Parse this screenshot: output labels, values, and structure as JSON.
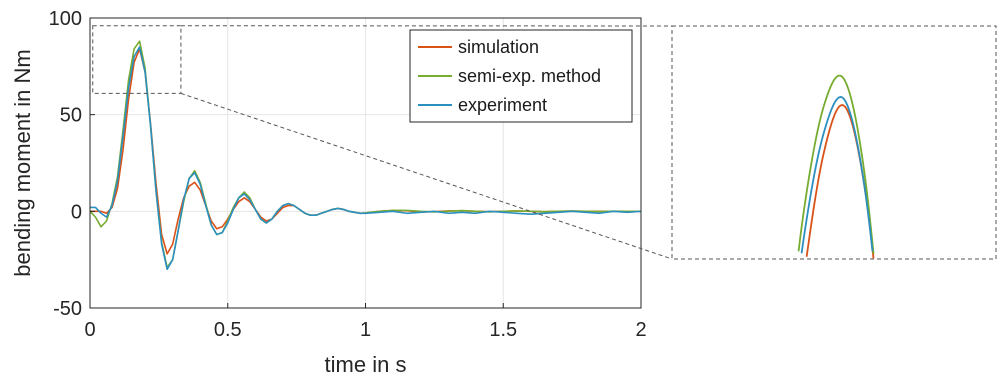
{
  "chart_data": {
    "type": "line",
    "xlabel": "time in s",
    "ylabel": "bending moment in Nm",
    "xlim": [
      0,
      2
    ],
    "ylim": [
      -50,
      100
    ],
    "xticks": [
      0,
      0.5,
      1,
      1.5,
      2
    ],
    "xtick_labels": [
      "0",
      "0.5",
      "1",
      "1.5",
      "2"
    ],
    "yticks": [
      -50,
      0,
      50,
      100
    ],
    "ytick_labels": [
      "-50",
      "0",
      "50",
      "100"
    ],
    "grid": true,
    "legend_position": "top-right",
    "zoom_window": {
      "x": [
        0.01,
        0.33
      ],
      "y": [
        61,
        96
      ]
    },
    "series": [
      {
        "name": "simulation",
        "color": "#d95319",
        "x": [
          0,
          0.02,
          0.04,
          0.06,
          0.08,
          0.1,
          0.12,
          0.14,
          0.16,
          0.18,
          0.2,
          0.22,
          0.24,
          0.26,
          0.28,
          0.3,
          0.32,
          0.34,
          0.36,
          0.38,
          0.4,
          0.42,
          0.44,
          0.46,
          0.48,
          0.5,
          0.52,
          0.54,
          0.56,
          0.58,
          0.6,
          0.62,
          0.64,
          0.66,
          0.68,
          0.7,
          0.72,
          0.74,
          0.76,
          0.78,
          0.8,
          0.82,
          0.84,
          0.86,
          0.88,
          0.9,
          0.92,
          0.94,
          0.96,
          0.98,
          1.0,
          1.05,
          1.1,
          1.15,
          1.2,
          1.25,
          1.3,
          1.35,
          1.4,
          1.45,
          1.5,
          1.55,
          1.6,
          1.65,
          1.7,
          1.75,
          1.8,
          1.85,
          1.9,
          1.95,
          2.0
        ],
        "y": [
          0,
          0,
          0,
          -1,
          2,
          12,
          32,
          58,
          77,
          84,
          72,
          45,
          14,
          -12,
          -22,
          -17,
          -4,
          7,
          13,
          15,
          11,
          3,
          -5,
          -9,
          -8,
          -4,
          1,
          5,
          7,
          5,
          1,
          -3,
          -5,
          -4,
          -1,
          2,
          3,
          3,
          1,
          -1,
          -2,
          -2,
          -1,
          0,
          1,
          1.5,
          1,
          0,
          -0.5,
          -1,
          -0.8,
          0,
          0.5,
          0.3,
          -0.3,
          -0.2,
          0.2,
          0.3,
          0,
          -0.2,
          0,
          0.2,
          0,
          -0.2,
          0,
          0.1,
          0,
          0,
          0,
          0,
          0
        ]
      },
      {
        "name": "semi-exp. method",
        "color": "#77ac30",
        "x": [
          0,
          0.02,
          0.04,
          0.06,
          0.08,
          0.1,
          0.12,
          0.14,
          0.16,
          0.18,
          0.2,
          0.22,
          0.24,
          0.26,
          0.28,
          0.3,
          0.32,
          0.34,
          0.36,
          0.38,
          0.4,
          0.42,
          0.44,
          0.46,
          0.48,
          0.5,
          0.52,
          0.54,
          0.56,
          0.58,
          0.6,
          0.62,
          0.64,
          0.66,
          0.68,
          0.7,
          0.72,
          0.74,
          0.76,
          0.78,
          0.8,
          0.82,
          0.84,
          0.86,
          0.88,
          0.9,
          0.92,
          0.94,
          0.96,
          0.98,
          1.0,
          1.05,
          1.1,
          1.15,
          1.2,
          1.25,
          1.3,
          1.35,
          1.4,
          1.45,
          1.5,
          1.55,
          1.6,
          1.65,
          1.7,
          1.75,
          1.8,
          1.85,
          1.9,
          1.95,
          2.0
        ],
        "y": [
          0,
          -3,
          -8,
          -5,
          4,
          18,
          42,
          68,
          84,
          88,
          74,
          44,
          10,
          -16,
          -29,
          -25,
          -10,
          5,
          17,
          21,
          15,
          4,
          -7,
          -12,
          -11,
          -5,
          2,
          7,
          10,
          7,
          1,
          -4,
          -6,
          -4,
          0,
          3,
          4,
          3,
          1,
          -1,
          -2,
          -2,
          -1,
          0,
          1,
          1.5,
          1,
          0,
          -0.5,
          -1,
          -0.8,
          0,
          0.5,
          0.5,
          0,
          -0.3,
          0,
          0.4,
          0,
          -0.3,
          0,
          0.2,
          0,
          -0.2,
          0,
          0.2,
          0,
          -0.1,
          0.1,
          0,
          0
        ]
      },
      {
        "name": "experiment",
        "color": "#2b8fbf",
        "x": [
          0,
          0.02,
          0.04,
          0.06,
          0.08,
          0.1,
          0.12,
          0.14,
          0.16,
          0.18,
          0.2,
          0.22,
          0.24,
          0.26,
          0.28,
          0.3,
          0.32,
          0.34,
          0.36,
          0.38,
          0.4,
          0.42,
          0.44,
          0.46,
          0.48,
          0.5,
          0.52,
          0.54,
          0.56,
          0.58,
          0.6,
          0.62,
          0.64,
          0.66,
          0.68,
          0.7,
          0.72,
          0.74,
          0.76,
          0.78,
          0.8,
          0.82,
          0.84,
          0.86,
          0.88,
          0.9,
          0.92,
          0.94,
          0.96,
          0.98,
          1.0,
          1.05,
          1.1,
          1.15,
          1.2,
          1.25,
          1.3,
          1.35,
          1.4,
          1.45,
          1.5,
          1.55,
          1.6,
          1.65,
          1.7,
          1.75,
          1.8,
          1.85,
          1.9,
          1.95,
          2.0
        ],
        "y": [
          2,
          2,
          -1,
          -3,
          3,
          16,
          39,
          64,
          80,
          85,
          72,
          44,
          10,
          -17,
          -30,
          -25,
          -10,
          6,
          17,
          20,
          14,
          3,
          -7,
          -12,
          -11,
          -6,
          1,
          7,
          9,
          6,
          1,
          -4,
          -6,
          -4,
          0,
          3,
          4,
          3,
          1,
          -1,
          -2,
          -2,
          -1,
          0,
          1,
          1.5,
          1,
          0,
          -0.5,
          -1,
          -1,
          -0.5,
          0,
          -1,
          -0.5,
          0,
          -1,
          -0.5,
          -1,
          0,
          -0.5,
          -1,
          -1.5,
          -1,
          -0.5,
          0,
          -0.5,
          -1,
          0,
          -0.5,
          0
        ]
      }
    ]
  }
}
